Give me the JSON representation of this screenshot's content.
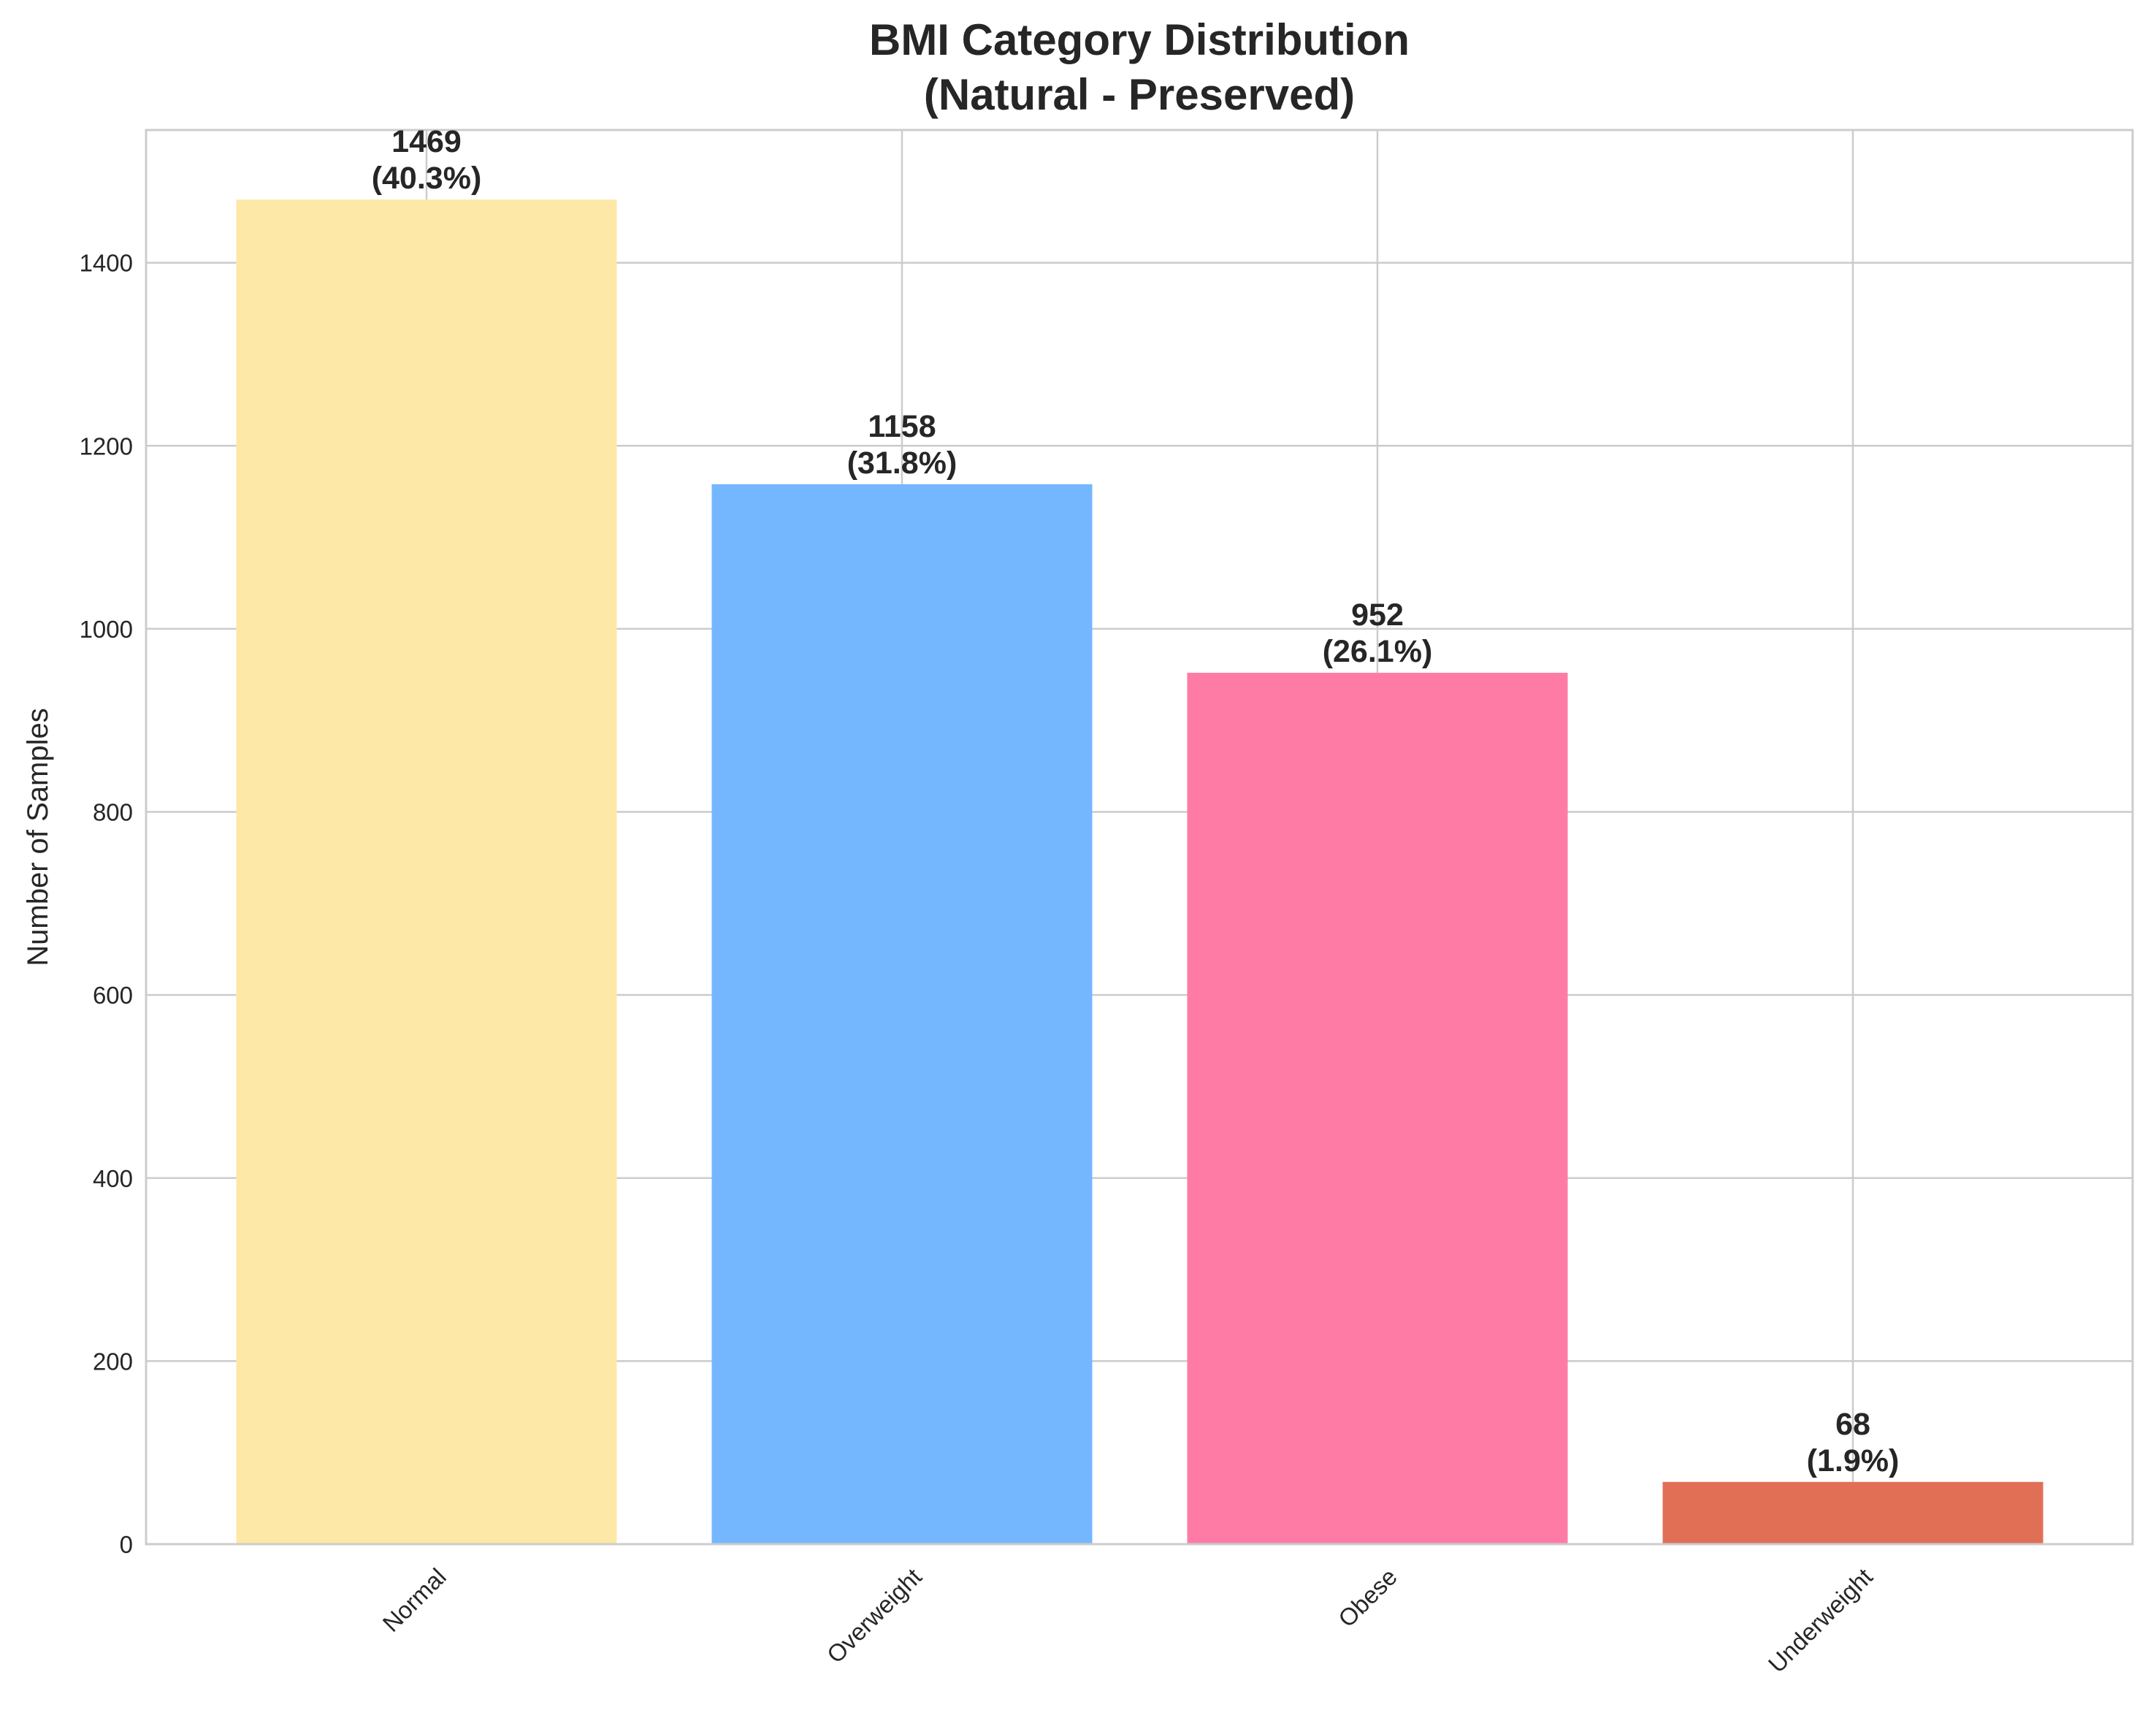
{
  "chart_data": {
    "type": "bar",
    "title": "BMI Category Distribution",
    "subtitle": "(Natural - Preserved)",
    "xlabel": "",
    "ylabel": "Number of Samples",
    "categories": [
      "Normal",
      "Overweight",
      "Obese",
      "Underweight"
    ],
    "values": [
      1469,
      1158,
      952,
      68
    ],
    "value_labels": [
      "1469",
      "1158",
      "952",
      "68"
    ],
    "percent_labels": [
      "(40.3%)",
      "(31.8%)",
      "(26.1%)",
      "(1.9%)"
    ],
    "colors": [
      "#fee8a8",
      "#74b7ff",
      "#fe7ba6",
      "#e16f56"
    ],
    "ylim": [
      0,
      1545
    ],
    "yticks": [
      0,
      200,
      400,
      600,
      800,
      1000,
      1200,
      1400
    ],
    "ytick_labels": [
      "0",
      "200",
      "400",
      "600",
      "800",
      "1000",
      "1200",
      "1400"
    ],
    "grid": true,
    "xtick_rotation": "45 degrees",
    "legend": "none"
  }
}
